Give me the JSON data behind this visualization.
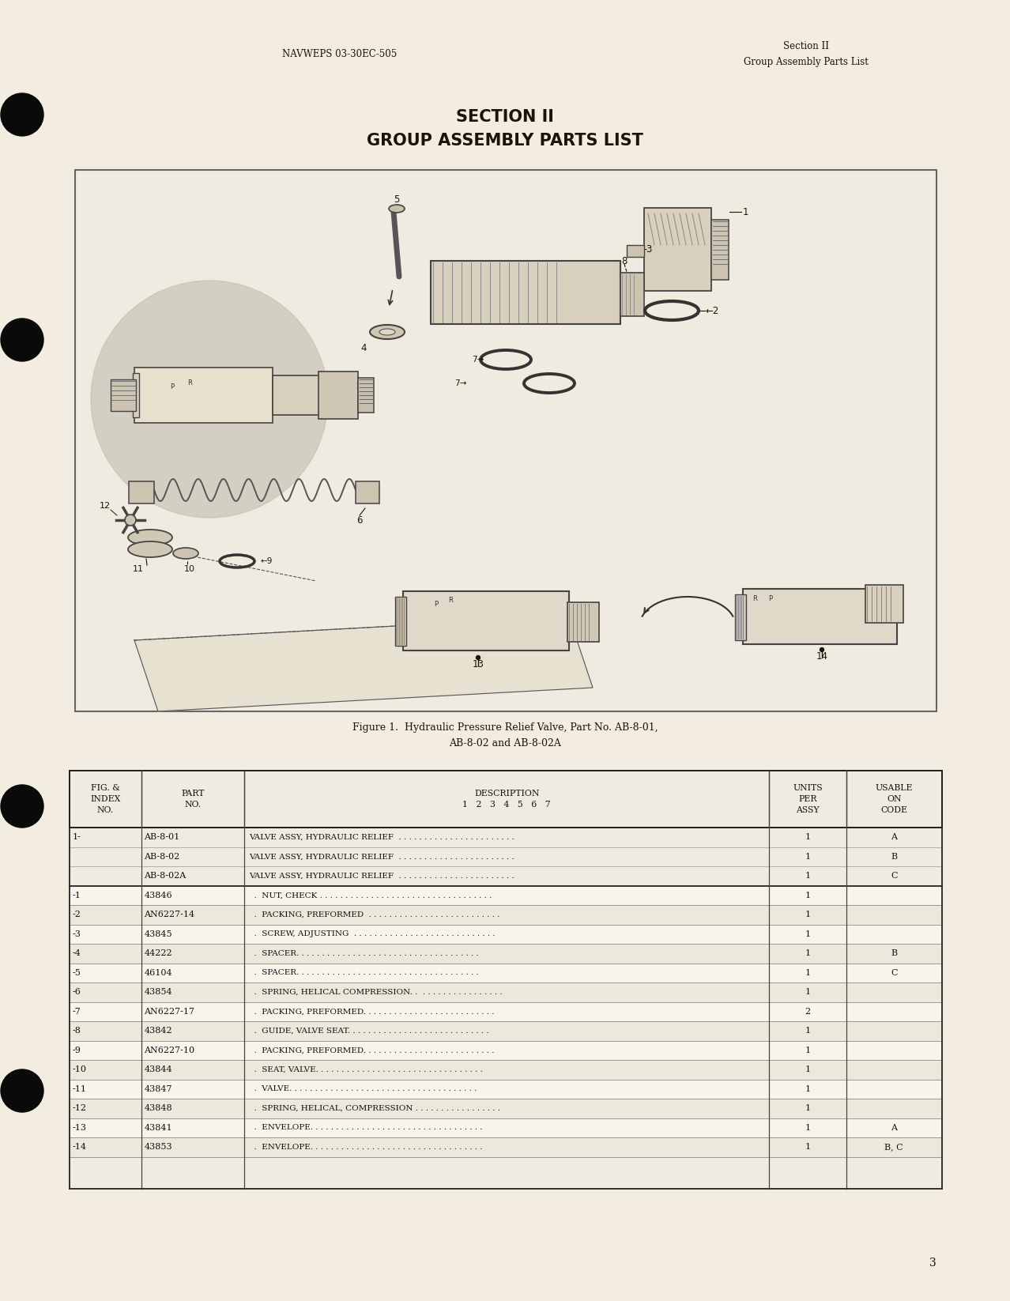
{
  "page_bg": "#f2ede0",
  "header_left": "NAVWEPS 03-30EC-505",
  "header_right_line1": "Section II",
  "header_right_line2": "Group Assembly Parts List",
  "section_title_line1": "SECTION II",
  "section_title_line2": "GROUP ASSEMBLY PARTS LIST",
  "figure_caption_line1": "Figure 1.  Hydraulic Pressure Relief Valve, Part No. AB-8-01,",
  "figure_caption_line2": "AB-8-02 and AB-8-02A",
  "page_number": "3",
  "table_rows": [
    [
      "1-",
      "AB-8-01",
      "VALVE ASSY, HYDRAULIC RELIEF  . . . . . . . . . . . . . . . . . . . . . . .",
      "1",
      "A"
    ],
    [
      "",
      "AB-8-02",
      "VALVE ASSY, HYDRAULIC RELIEF  . . . . . . . . . . . . . . . . . . . . . . .",
      "1",
      "B"
    ],
    [
      "",
      "AB-8-02A",
      "VALVE ASSY, HYDRAULIC RELIEF  . . . . . . . . . . . . . . . . . . . . . . .",
      "1",
      "C"
    ],
    [
      "-1",
      "43846",
      "  .  NUT, CHECK . . . . . . . . . . . . . . . . . . . . . . . . . . . . . . . . . .",
      "1",
      ""
    ],
    [
      "-2",
      "AN6227-14",
      "  .  PACKING, PREFORMED  . . . . . . . . . . . . . . . . . . . . . . . . . .",
      "1",
      ""
    ],
    [
      "-3",
      "43845",
      "  .  SCREW, ADJUSTING  . . . . . . . . . . . . . . . . . . . . . . . . . . . .",
      "1",
      ""
    ],
    [
      "-4",
      "44222",
      "  .  SPACER. . . . . . . . . . . . . . . . . . . . . . . . . . . . . . . . . . . .",
      "1",
      "B"
    ],
    [
      "-5",
      "46104",
      "  .  SPACER. . . . . . . . . . . . . . . . . . . . . . . . . . . . . . . . . . . .",
      "1",
      "C"
    ],
    [
      "-6",
      "43854",
      "  .  SPRING, HELICAL COMPRESSION. .  . . . . . . . . . . . . . . . .",
      "1",
      ""
    ],
    [
      "-7",
      "AN6227-17",
      "  .  PACKING, PREFORMED. . . . . . . . . . . . . . . . . . . . . . . . . .",
      "2",
      ""
    ],
    [
      "-8",
      "43842",
      "  .  GUIDE, VALVE SEAT. . . . . . . . . . . . . . . . . . . . . . . . . . . .",
      "1",
      ""
    ],
    [
      "-9",
      "AN6227-10",
      "  .  PACKING, PREFORMED. . . . . . . . . . . . . . . . . . . . . . . . . .",
      "1",
      ""
    ],
    [
      "-10",
      "43844",
      "  .  SEAT, VALVE. . . . . . . . . . . . . . . . . . . . . . . . . . . . . . . . .",
      "1",
      ""
    ],
    [
      "-11",
      "43847",
      "  .  VALVE. . . . . . . . . . . . . . . . . . . . . . . . . . . . . . . . . . . . .",
      "1",
      ""
    ],
    [
      "-12",
      "43848",
      "  .  SPRING, HELICAL, COMPRESSION . . . . . . . . . . . . . . . . .",
      "1",
      ""
    ],
    [
      "-13",
      "43841",
      "  .  ENVELOPE. . . . . . . . . . . . . . . . . . . . . . . . . . . . . . . . . .",
      "1",
      "A"
    ],
    [
      "-14",
      "43853",
      "  .  ENVELOPE. . . . . . . . . . . . . . . . . . . . . . . . . . . . . . . . . .",
      "1",
      "B, C"
    ]
  ],
  "text_color": "#1a1505"
}
